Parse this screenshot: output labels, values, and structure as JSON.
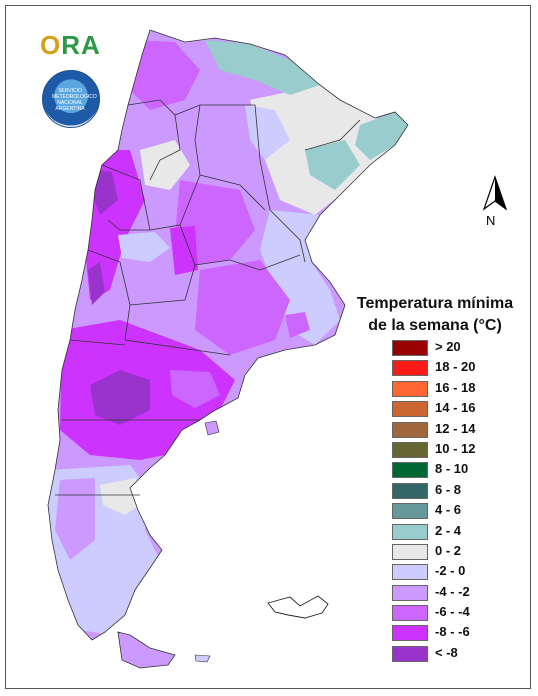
{
  "logo": {
    "text_o": "O",
    "text_rest": "RA",
    "seal_text": "SERVICIO METEOROLOGICO NACIONAL ARGENTINA"
  },
  "north": {
    "label": "N"
  },
  "legend": {
    "title_line1": "Temperatura mínima",
    "title_line2": "de la semana (°C)",
    "items": [
      {
        "label": "> 20",
        "color": "#990000"
      },
      {
        "label": "18 - 20",
        "color": "#ff1a1a"
      },
      {
        "label": "16 - 18",
        "color": "#ff6633"
      },
      {
        "label": "14 - 16",
        "color": "#cc6633"
      },
      {
        "label": "12 - 14",
        "color": "#a0683a"
      },
      {
        "label": "10 - 12",
        "color": "#666633"
      },
      {
        "label": "8 - 10",
        "color": "#006633"
      },
      {
        "label": "6 - 8",
        "color": "#336666"
      },
      {
        "label": "4 - 6",
        "color": "#669999"
      },
      {
        "label": "2 - 4",
        "color": "#99cccc"
      },
      {
        "label": "0 - 2",
        "color": "#e8e8e8"
      },
      {
        "label": "-2 - 0",
        "color": "#ccccff"
      },
      {
        "label": "-4 - -2",
        "color": "#cc99ff"
      },
      {
        "label": "-6 - -4",
        "color": "#cc66ff"
      },
      {
        "label": "-8 - -6",
        "color": "#cc33ff"
      },
      {
        "label": "< -8",
        "color": "#9933cc"
      }
    ]
  },
  "map_colors": {
    "n_lt_8": "#9933cc",
    "n_8_6": "#cc33ff",
    "n_6_4": "#cc66ff",
    "n_4_2": "#cc99ff",
    "n_2_0": "#ccccff",
    "p_0_2": "#e8e8e8",
    "p_2_4": "#99cccc",
    "border": "#333333"
  }
}
